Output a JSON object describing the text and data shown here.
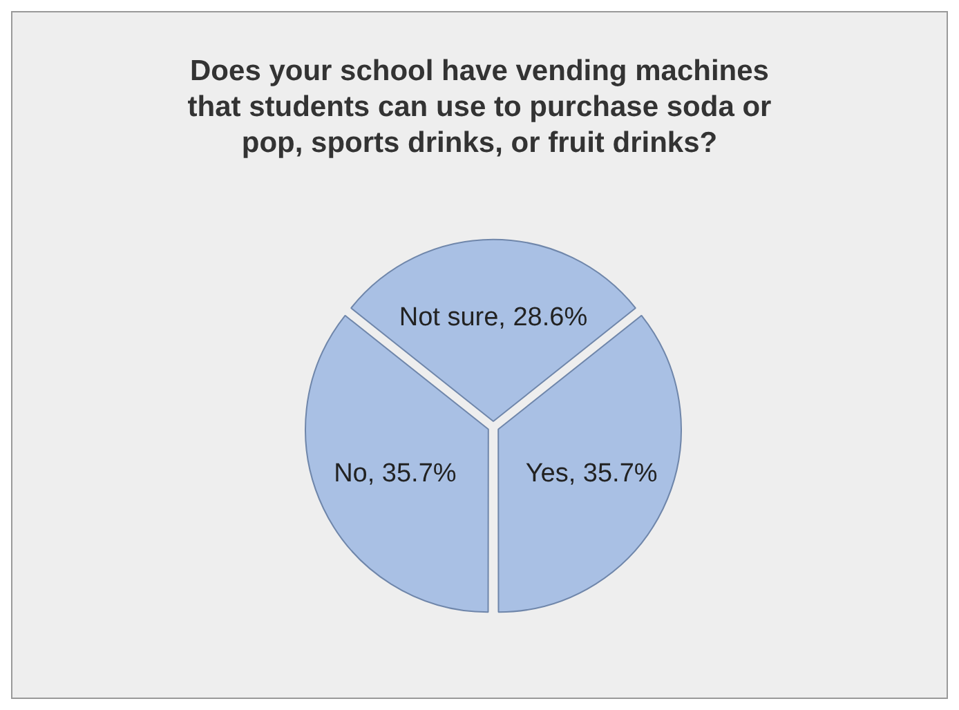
{
  "chart_data": {
    "type": "pie",
    "title": "Does your school have vending machines that students can use to purchase soda or pop, sports drinks, or fruit drinks?",
    "categories": [
      "Not sure",
      "Yes",
      "No"
    ],
    "values": [
      28.6,
      35.7,
      35.7
    ],
    "value_labels": [
      "28.6%",
      "35.7%",
      "35.7%"
    ],
    "colors": [
      "#a9c0e4",
      "#a9c0e4",
      "#a9c0e4"
    ],
    "legend": false
  }
}
